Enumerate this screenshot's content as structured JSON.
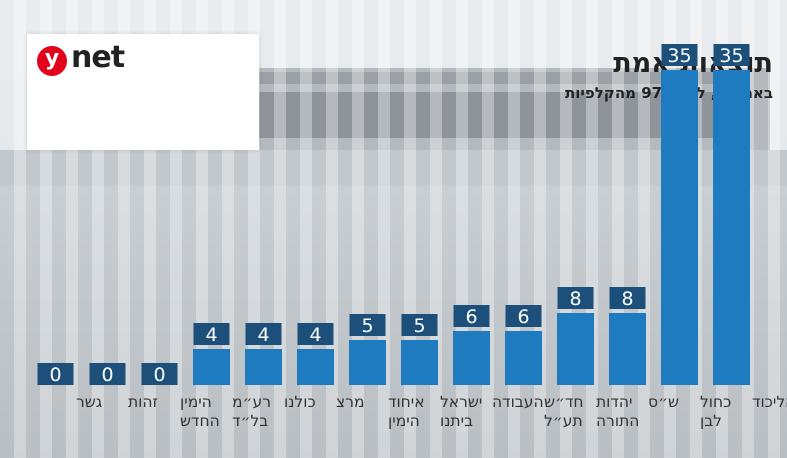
{
  "brand": {
    "logo_y": "y",
    "logo_net": "net"
  },
  "header": {
    "title": "תוצאות אמת",
    "subtitle": "באחוזים, לפי 97% מהקלפיות"
  },
  "colors": {
    "bar": "#1f7bbf",
    "value_box": "#1c4f7a",
    "value_text": "#ffffff",
    "label": "#333333",
    "logo_red": "#e2001a"
  },
  "chart_data": {
    "type": "bar",
    "categories": [
      "הליכוד",
      "כחול לבן",
      "ש״ס",
      "יהדות התורה",
      "חד״ש תע״ל",
      "העבודה",
      "ישראל ביתנו",
      "איחוד הימין",
      "מרצ",
      "כולנו",
      "רע״מ בל״ד",
      "הימין החדש",
      "זהות",
      "גשר"
    ],
    "category_lines": [
      [
        "הליכוד"
      ],
      [
        "כחול",
        "לבן"
      ],
      [
        "ש״ס"
      ],
      [
        "יהדות",
        "התורה"
      ],
      [
        "חד״ש",
        "תע״ל"
      ],
      [
        "העבודה"
      ],
      [
        "ישראל",
        "ביתנו"
      ],
      [
        "איחוד",
        "הימין"
      ],
      [
        "מרצ"
      ],
      [
        "כולנו"
      ],
      [
        "רע״מ",
        "בל״ד"
      ],
      [
        "הימין",
        "החדש"
      ],
      [
        "זהות"
      ],
      [
        "גשר"
      ]
    ],
    "values": [
      35,
      35,
      8,
      8,
      6,
      6,
      5,
      5,
      4,
      4,
      4,
      0,
      0,
      0
    ],
    "value_labels": [
      "35",
      "35",
      "8",
      "8",
      "6",
      "6",
      "5",
      "5",
      "4",
      "4",
      "4",
      "0",
      "0",
      "0"
    ],
    "ylim": [
      0,
      35
    ],
    "direction": "rtl",
    "grid": false,
    "legend": "none"
  }
}
